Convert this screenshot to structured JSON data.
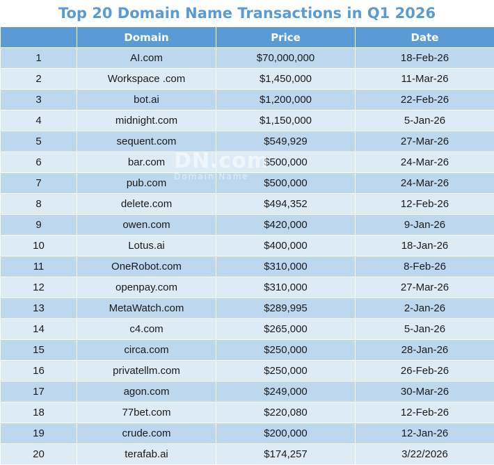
{
  "title": "Top 20 Domain Name Transactions in Q1 2026",
  "columns": [
    "",
    "Domain",
    "Price",
    "Date"
  ],
  "rows": [
    {
      "rank": "1",
      "domain": "AI.com",
      "price": "$70,000,000",
      "date": "18-Feb-26"
    },
    {
      "rank": "2",
      "domain": "Workspace .com",
      "price": "$1,450,000",
      "date": "11-Mar-26"
    },
    {
      "rank": "3",
      "domain": "bot.ai",
      "price": "$1,200,000",
      "date": "22-Feb-26"
    },
    {
      "rank": "4",
      "domain": "midnight.com",
      "price": "$1,150,000",
      "date": "5-Jan-26"
    },
    {
      "rank": "5",
      "domain": "sequent.com",
      "price": "$549,929",
      "date": "27-Mar-26"
    },
    {
      "rank": "6",
      "domain": "bar.com",
      "price": "$500,000",
      "date": "24-Mar-26"
    },
    {
      "rank": "7",
      "domain": "pub.com",
      "price": "$500,000",
      "date": "24-Mar-26"
    },
    {
      "rank": "8",
      "domain": "delete.com",
      "price": "$494,352",
      "date": "12-Feb-26"
    },
    {
      "rank": "9",
      "domain": "owen.com",
      "price": "$420,000",
      "date": "9-Jan-26"
    },
    {
      "rank": "10",
      "domain": "Lotus.ai",
      "price": "$400,000",
      "date": "18-Jan-26"
    },
    {
      "rank": "11",
      "domain": "OneRobot.com",
      "price": "$310,000",
      "date": "8-Feb-26"
    },
    {
      "rank": "12",
      "domain": "openpay.com",
      "price": "$310,000",
      "date": "27-Mar-26"
    },
    {
      "rank": "13",
      "domain": "MetaWatch.com",
      "price": "$289,995",
      "date": "2-Jan-26"
    },
    {
      "rank": "14",
      "domain": "c4.com",
      "price": "$265,000",
      "date": "5-Jan-26"
    },
    {
      "rank": "15",
      "domain": "circa.com",
      "price": "$250,000",
      "date": "28-Jan-26"
    },
    {
      "rank": "16",
      "domain": "privatellm.com",
      "price": "$250,000",
      "date": "26-Feb-26"
    },
    {
      "rank": "17",
      "domain": "agon.com",
      "price": "$249,000",
      "date": "30-Mar-26"
    },
    {
      "rank": "18",
      "domain": "77bet.com",
      "price": "$220,080",
      "date": "12-Feb-26"
    },
    {
      "rank": "19",
      "domain": "crude.com",
      "price": "$200,000",
      "date": "12-Jan-26"
    },
    {
      "rank": "20",
      "domain": "terafab.ai",
      "price": "$174,257",
      "date": "3/22/2026"
    }
  ],
  "watermark": {
    "logo": "DN.com",
    "sub": "Domain Name"
  }
}
